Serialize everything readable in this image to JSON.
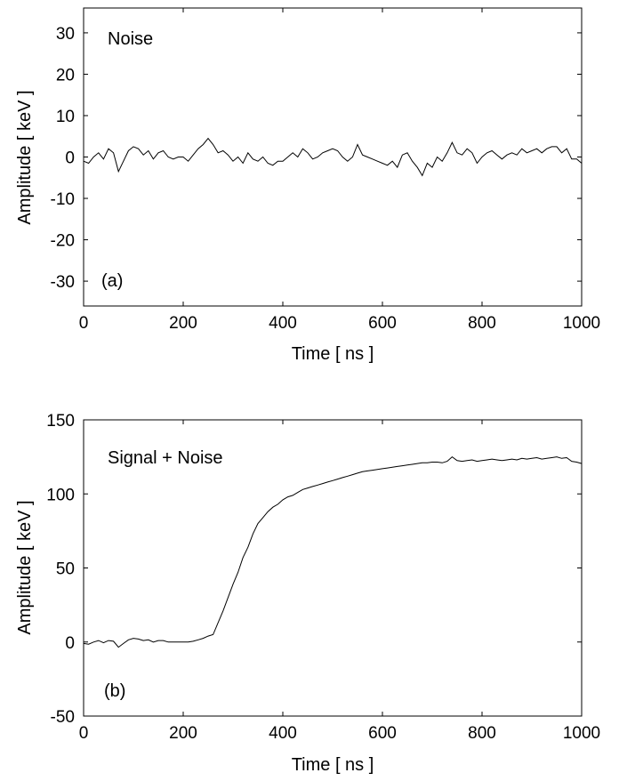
{
  "chart_data": [
    {
      "type": "line",
      "panel": "(a)",
      "annotation": "Noise",
      "xlabel": "Time [ ns ]",
      "ylabel": "Amplitude [ keV ]",
      "xlim": [
        0,
        1000
      ],
      "ylim": [
        -36,
        36
      ],
      "xticks": [
        0,
        200,
        400,
        600,
        800,
        1000
      ],
      "yticks": [
        -30,
        -20,
        -10,
        0,
        10,
        20,
        30
      ],
      "grid": false,
      "color": "#000000",
      "series": [
        {
          "x": [
            0,
            10,
            20,
            30,
            40,
            50,
            60,
            70,
            80,
            90,
            100,
            110,
            120,
            130,
            140,
            150,
            160,
            170,
            180,
            190,
            200,
            210,
            220,
            230,
            240,
            250,
            260,
            270,
            280,
            290,
            300,
            310,
            320,
            330,
            340,
            350,
            360,
            370,
            380,
            390,
            400,
            410,
            420,
            430,
            440,
            450,
            460,
            470,
            480,
            490,
            500,
            510,
            520,
            530,
            540,
            550,
            560,
            570,
            580,
            590,
            600,
            610,
            620,
            630,
            640,
            650,
            660,
            670,
            680,
            690,
            700,
            710,
            720,
            730,
            740,
            750,
            760,
            770,
            780,
            790,
            800,
            810,
            820,
            830,
            840,
            850,
            860,
            870,
            880,
            890,
            900,
            910,
            920,
            930,
            940,
            950,
            960,
            970,
            980,
            990,
            1000
          ],
          "y": [
            -1,
            -1.5,
            0,
            1,
            -0.5,
            2,
            1,
            -3.5,
            -1,
            1.5,
            2.5,
            2,
            0.5,
            1.5,
            -0.5,
            1,
            1.5,
            0,
            -0.5,
            0,
            0,
            -1,
            0.5,
            2,
            3,
            4.5,
            3,
            1,
            1.5,
            0.5,
            -1,
            0,
            -1.5,
            1,
            -0.5,
            -1,
            0,
            -1.5,
            -2,
            -1,
            -1,
            0,
            1,
            0,
            2,
            1,
            -0.5,
            0,
            1,
            1.5,
            2,
            1.5,
            0,
            -1,
            0,
            3,
            0.5,
            0,
            -0.5,
            -1,
            -1.5,
            -2,
            -1,
            -2.5,
            0.5,
            1,
            -1,
            -2.5,
            -4.5,
            -1.5,
            -2.5,
            0,
            -1,
            1,
            3.5,
            1,
            0.5,
            2,
            1,
            -1.5,
            0,
            1,
            1.5,
            0.5,
            -0.5,
            0.5,
            1,
            0.5,
            2,
            1,
            1.5,
            2,
            1,
            2,
            2.5,
            2.5,
            1,
            2,
            -0.5,
            -0.5,
            -1.5
          ]
        }
      ]
    },
    {
      "type": "line",
      "panel": "(b)",
      "annotation": "Signal + Noise",
      "xlabel": "Time [ ns ]",
      "ylabel": "Amplitude [ keV ]",
      "xlim": [
        0,
        1000
      ],
      "ylim": [
        -50,
        150
      ],
      "xticks": [
        0,
        200,
        400,
        600,
        800,
        1000
      ],
      "yticks": [
        -50,
        0,
        50,
        100,
        150
      ],
      "grid": false,
      "color": "#000000",
      "series": [
        {
          "x": [
            0,
            10,
            20,
            30,
            40,
            50,
            60,
            70,
            80,
            90,
            100,
            110,
            120,
            130,
            140,
            150,
            160,
            170,
            180,
            190,
            200,
            210,
            220,
            230,
            240,
            250,
            260,
            270,
            280,
            290,
            300,
            310,
            320,
            330,
            340,
            350,
            360,
            370,
            380,
            390,
            400,
            410,
            420,
            430,
            440,
            450,
            460,
            470,
            480,
            490,
            500,
            510,
            520,
            530,
            540,
            550,
            560,
            570,
            580,
            590,
            600,
            610,
            620,
            630,
            640,
            650,
            660,
            670,
            680,
            690,
            700,
            710,
            720,
            730,
            740,
            750,
            760,
            770,
            780,
            790,
            800,
            810,
            820,
            830,
            840,
            850,
            860,
            870,
            880,
            890,
            900,
            910,
            920,
            930,
            940,
            950,
            960,
            970,
            980,
            990,
            1000
          ],
          "y": [
            -1,
            -1.5,
            0,
            1,
            -0.5,
            1,
            0.5,
            -3.5,
            -1,
            1.5,
            2.5,
            2,
            1,
            1.5,
            0,
            1,
            1,
            0,
            0,
            0,
            0,
            0,
            0.5,
            1.5,
            2.5,
            4,
            5,
            13,
            21,
            30,
            39,
            47,
            57,
            64,
            73,
            80,
            84,
            88,
            91,
            93,
            96,
            98,
            99,
            101,
            103,
            104,
            105,
            106,
            107,
            108,
            109,
            110,
            111,
            112,
            113,
            114,
            115,
            115.5,
            116,
            116.5,
            117,
            117.5,
            118,
            118.5,
            119,
            119.5,
            120,
            120.5,
            121,
            121,
            121.5,
            121.5,
            121,
            122,
            125,
            122.5,
            122,
            122.5,
            123,
            122,
            122.5,
            123,
            123.5,
            123,
            122.5,
            123,
            123.5,
            123,
            124,
            123.5,
            124,
            124.5,
            123.5,
            124,
            124.5,
            125,
            124,
            124.5,
            122,
            121.5,
            120.5
          ]
        }
      ]
    }
  ]
}
